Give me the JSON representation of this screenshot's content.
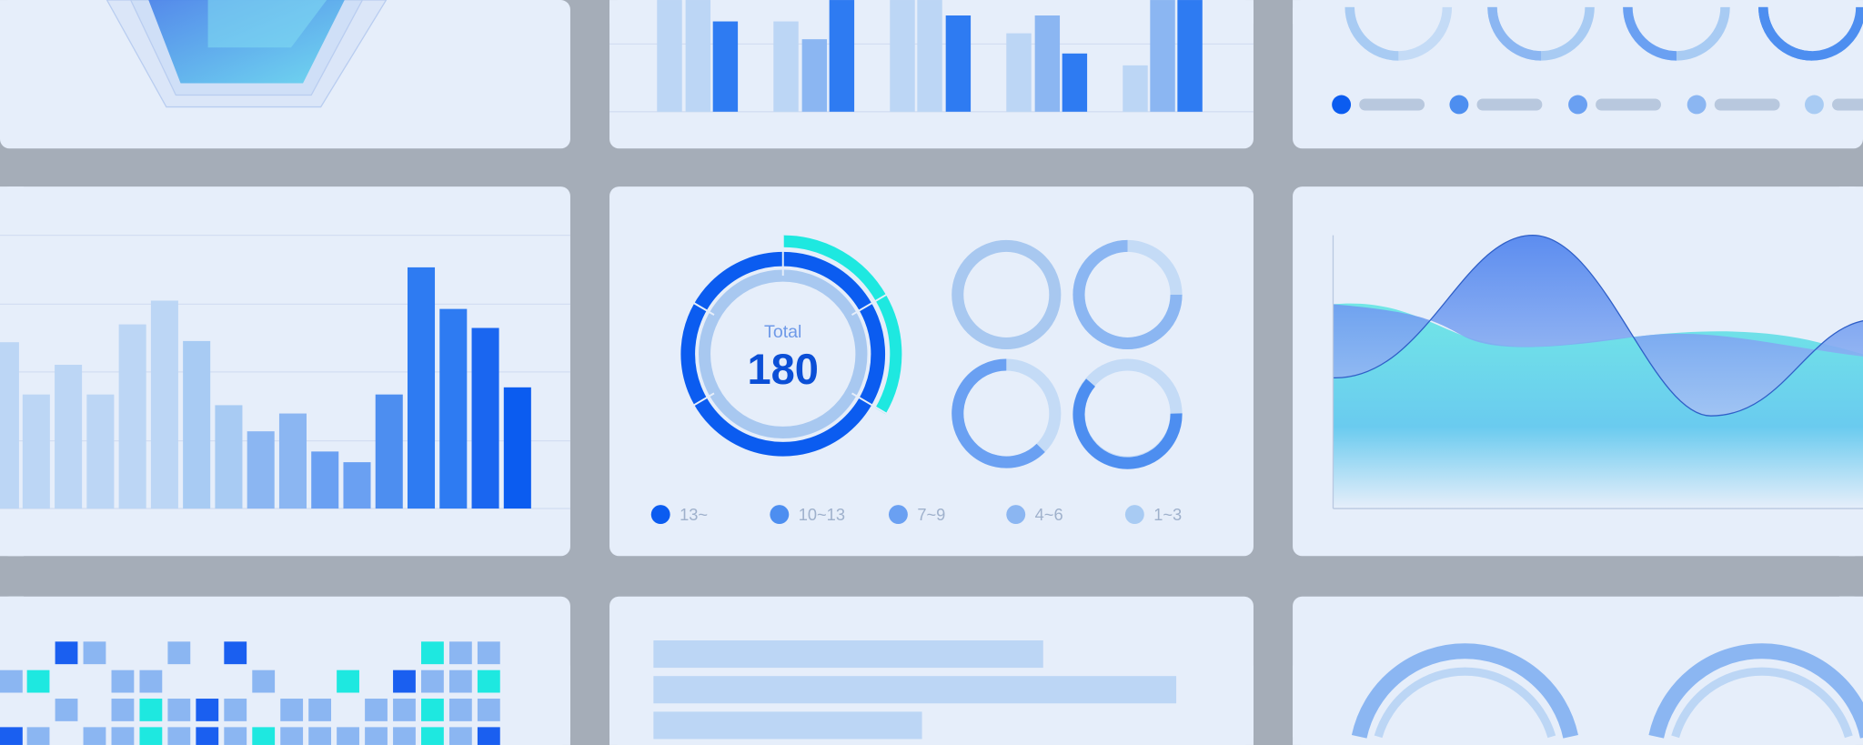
{
  "donut": {
    "label": "Total",
    "value": "180"
  },
  "legend": [
    {
      "label": "13~",
      "color": "#0b5cf0"
    },
    {
      "label": "10~13",
      "color": "#4d8ef0"
    },
    {
      "label": "7~9",
      "color": "#6aa0f2"
    },
    {
      "label": "4~6",
      "color": "#8bb6f2"
    },
    {
      "label": "1~3",
      "color": "#a8cbf3"
    }
  ],
  "colors": {
    "background": "#a5adb8",
    "card": "#e6eefa",
    "accent": "#0b5cf0",
    "cyan": "#1ee8e0",
    "light": "#bcd6f5"
  }
}
